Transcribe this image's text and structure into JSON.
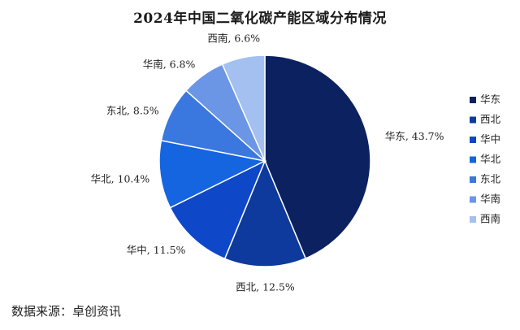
{
  "chart_data": {
    "type": "pie",
    "title": "2024年中国二氧化碳产能区域分布情况",
    "slices": [
      {
        "name": "华东",
        "value": 43.7,
        "label": "华东, 43.7%",
        "color": "#0b2160"
      },
      {
        "name": "西北",
        "value": 12.5,
        "label": "西北, 12.5%",
        "color": "#0d3a9c"
      },
      {
        "name": "华中",
        "value": 11.5,
        "label": "华中, 11.5%",
        "color": "#0e47c8"
      },
      {
        "name": "华北",
        "value": 10.4,
        "label": "华北, 10.4%",
        "color": "#1565e0"
      },
      {
        "name": "东北",
        "value": 8.5,
        "label": "东北, 8.5%",
        "color": "#3a78e0"
      },
      {
        "name": "华南",
        "value": 6.8,
        "label": "华南, 6.8%",
        "color": "#6b96e6"
      },
      {
        "name": "西南",
        "value": 6.6,
        "label": "西南, 6.6%",
        "color": "#a4c0f0"
      }
    ],
    "legend_position": "right"
  },
  "source": "数据来源：卓创资讯"
}
